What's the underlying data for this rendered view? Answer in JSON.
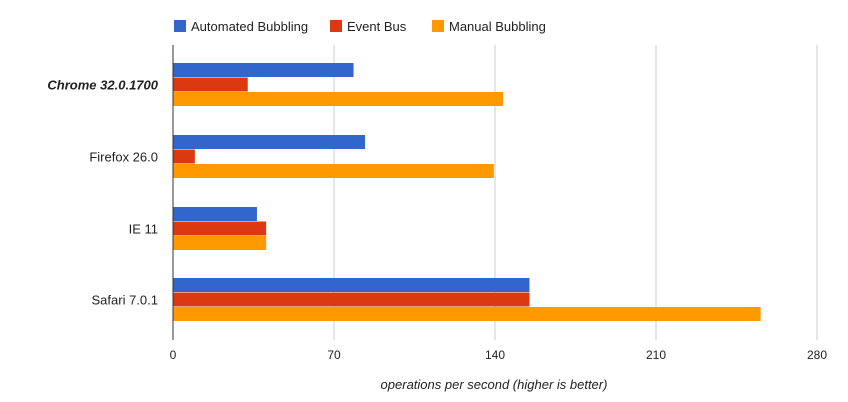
{
  "chart_data": {
    "type": "bar",
    "orientation": "horizontal",
    "categories": [
      "Chrome 32.0.1700",
      "Firefox 26.0",
      "IE 11",
      "Safari 7.0.1"
    ],
    "highlighted_category": "Chrome 32.0.1700",
    "series": [
      {
        "name": "Automated Bubbling",
        "color": "#3366cc",
        "values": [
          78.5,
          83.5,
          36.5,
          155
        ]
      },
      {
        "name": "Event Bus",
        "color": "#dc3912",
        "values": [
          32.5,
          9.5,
          40.5,
          155
        ]
      },
      {
        "name": "Manual Bubbling",
        "color": "#ff9900",
        "values": [
          143.5,
          139.5,
          40.5,
          255.5
        ]
      }
    ],
    "xlabel": "operations per second (higher is better)",
    "ylabel": "",
    "xlim": [
      0,
      280
    ],
    "xticks": [
      0,
      70,
      140,
      210,
      280
    ],
    "grid": true,
    "legend_position": "top-left"
  }
}
